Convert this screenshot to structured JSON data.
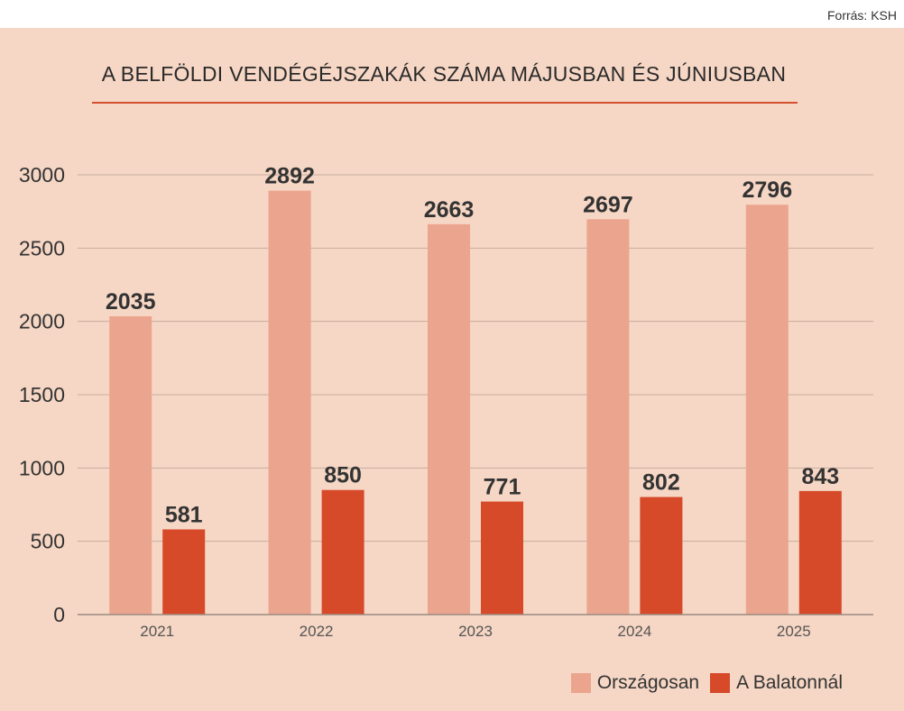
{
  "source": "Forrás: KSH",
  "colors": {
    "background": "#f6d6c4",
    "series1": "#eba58f",
    "series2": "#d64a2a",
    "grid": "#c7aea0"
  },
  "chart_data": {
    "type": "bar",
    "title": "A BELFÖLDI VENDÉGÉJSZAKÁK SZÁMA MÁJUSBAN ÉS JÚNIUSBAN",
    "categories": [
      "2021",
      "2022",
      "2023",
      "2024",
      "2025"
    ],
    "series": [
      {
        "name": "Országosan",
        "values": [
          2035,
          2892,
          2663,
          2697,
          2796
        ]
      },
      {
        "name": "A Balatonnál",
        "values": [
          581,
          850,
          771,
          802,
          843
        ]
      }
    ],
    "ylim": [
      0,
      3000
    ],
    "yticks": [
      0,
      500,
      1000,
      1500,
      2000,
      2500,
      3000
    ],
    "grid": true,
    "legend": "bottom-right"
  }
}
